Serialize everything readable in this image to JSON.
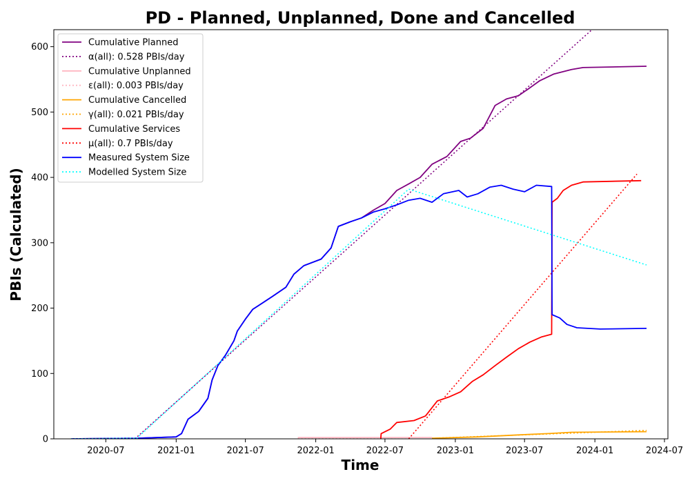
{
  "chart_data": {
    "type": "line",
    "title": "PD - Planned, Unplanned, Done  and Cancelled",
    "xlabel": "Time",
    "ylabel": "PBIs (Calculated)",
    "xlim": [
      "2020-02-16",
      "2024-07-10"
    ],
    "ylim": [
      0,
      626
    ],
    "x_ticks": [
      "2020-07-01",
      "2021-01-01",
      "2021-07-01",
      "2022-01-01",
      "2022-07-01",
      "2023-01-01",
      "2023-07-01",
      "2024-01-01",
      "2024-07-01"
    ],
    "x_tick_labels": [
      "2020-07",
      "2021-01",
      "2021-07",
      "2022-01",
      "2022-07",
      "2023-01",
      "2023-07",
      "2024-01",
      "2024-07"
    ],
    "y_ticks": [
      0,
      100,
      200,
      300,
      400,
      500,
      600
    ],
    "y_tick_labels": [
      "0",
      "100",
      "200",
      "300",
      "400",
      "500",
      "600"
    ],
    "grid": false,
    "legend_position": "top-left",
    "series": [
      {
        "name": "Cumulative Planned",
        "color": "#800080",
        "style": "solid",
        "points": [
          [
            "2020-04-01",
            0
          ],
          [
            "2020-09-20",
            1
          ],
          [
            "2021-01-01",
            3
          ],
          [
            "2021-01-15",
            8
          ],
          [
            "2021-02-01",
            30
          ],
          [
            "2021-03-01",
            42
          ],
          [
            "2021-03-25",
            62
          ],
          [
            "2021-04-05",
            90
          ],
          [
            "2021-04-20",
            112
          ],
          [
            "2021-05-10",
            128
          ],
          [
            "2021-06-01",
            150
          ],
          [
            "2021-06-10",
            165
          ],
          [
            "2021-07-01",
            183
          ],
          [
            "2021-07-20",
            198
          ],
          [
            "2021-08-15",
            208
          ],
          [
            "2021-09-10",
            218
          ],
          [
            "2021-10-15",
            232
          ],
          [
            "2021-11-05",
            252
          ],
          [
            "2021-12-01",
            265
          ],
          [
            "2022-01-15",
            275
          ],
          [
            "2022-02-10",
            292
          ],
          [
            "2022-03-01",
            325
          ],
          [
            "2022-04-01",
            332
          ],
          [
            "2022-05-01",
            338
          ],
          [
            "2022-06-01",
            350
          ],
          [
            "2022-07-01",
            360
          ],
          [
            "2022-08-01",
            380
          ],
          [
            "2022-09-01",
            390
          ],
          [
            "2022-10-01",
            400
          ],
          [
            "2022-11-01",
            420
          ],
          [
            "2022-12-10",
            432
          ],
          [
            "2023-01-15",
            455
          ],
          [
            "2023-02-10",
            460
          ],
          [
            "2023-03-15",
            475
          ],
          [
            "2023-04-15",
            510
          ],
          [
            "2023-05-15",
            520
          ],
          [
            "2023-06-15",
            525
          ],
          [
            "2023-07-10",
            535
          ],
          [
            "2023-08-10",
            548
          ],
          [
            "2023-09-15",
            558
          ],
          [
            "2023-11-01",
            565
          ],
          [
            "2023-12-01",
            568
          ],
          [
            "2024-05-15",
            570
          ]
        ]
      },
      {
        "name": "α(all): 0.528 PBIs/day",
        "color": "#800080",
        "style": "dotted",
        "points": [
          [
            "2020-09-15",
            0
          ],
          [
            "2024-01-01",
            630
          ]
        ]
      },
      {
        "name": "Cumulative Unplanned",
        "color": "#ffb6c1",
        "style": "solid",
        "points": [
          [
            "2021-11-15",
            2
          ],
          [
            "2022-11-01",
            2
          ]
        ]
      },
      {
        "name": "ε(all): 0.003 PBIs/day",
        "color": "#ffb6c1",
        "style": "dotted",
        "points": [
          [
            "2021-11-15",
            1
          ],
          [
            "2022-11-01",
            2
          ]
        ]
      },
      {
        "name": "Cumulative Cancelled",
        "color": "#ffa500",
        "style": "solid",
        "points": [
          [
            "2022-11-01",
            1
          ],
          [
            "2023-03-01",
            3
          ],
          [
            "2023-06-15",
            6
          ],
          [
            "2023-09-01",
            8
          ],
          [
            "2023-11-01",
            10
          ],
          [
            "2024-05-15",
            11
          ]
        ]
      },
      {
        "name": "γ(all): 0.021 PBIs/day",
        "color": "#ffa500",
        "style": "dotted",
        "points": [
          [
            "2022-11-01",
            1
          ],
          [
            "2024-05-15",
            13
          ]
        ]
      },
      {
        "name": "Cumulative Services",
        "color": "#ff0000",
        "style": "solid",
        "points": [
          [
            "2022-06-20",
            0
          ],
          [
            "2022-06-21",
            8
          ],
          [
            "2022-07-15",
            15
          ],
          [
            "2022-08-01",
            25
          ],
          [
            "2022-09-15",
            28
          ],
          [
            "2022-10-15",
            35
          ],
          [
            "2022-11-15",
            58
          ],
          [
            "2022-12-15",
            64
          ],
          [
            "2023-01-15",
            72
          ],
          [
            "2023-02-15",
            88
          ],
          [
            "2023-03-15",
            98
          ],
          [
            "2023-04-15",
            112
          ],
          [
            "2023-05-15",
            125
          ],
          [
            "2023-06-15",
            138
          ],
          [
            "2023-07-15",
            148
          ],
          [
            "2023-08-15",
            156
          ],
          [
            "2023-09-10",
            160
          ],
          [
            "2023-09-11",
            362
          ],
          [
            "2023-09-25",
            368
          ],
          [
            "2023-10-10",
            380
          ],
          [
            "2023-11-01",
            388
          ],
          [
            "2023-12-01",
            393
          ],
          [
            "2024-05-01",
            395
          ]
        ]
      },
      {
        "name": "μ(all): 0.7 PBIs/day",
        "color": "#ff0000",
        "style": "dotted",
        "points": [
          [
            "2022-09-01",
            0
          ],
          [
            "2024-04-20",
            405
          ]
        ]
      },
      {
        "name": "Measured System Size",
        "color": "#0000ff",
        "style": "solid",
        "points": [
          [
            "2020-04-01",
            0
          ],
          [
            "2020-09-20",
            1
          ],
          [
            "2021-01-01",
            3
          ],
          [
            "2021-01-15",
            8
          ],
          [
            "2021-02-01",
            30
          ],
          [
            "2021-03-01",
            42
          ],
          [
            "2021-03-25",
            62
          ],
          [
            "2021-04-05",
            90
          ],
          [
            "2021-04-20",
            112
          ],
          [
            "2021-05-10",
            128
          ],
          [
            "2021-06-01",
            150
          ],
          [
            "2021-06-10",
            165
          ],
          [
            "2021-07-01",
            183
          ],
          [
            "2021-07-20",
            198
          ],
          [
            "2021-08-15",
            208
          ],
          [
            "2021-09-10",
            218
          ],
          [
            "2021-10-15",
            232
          ],
          [
            "2021-11-05",
            252
          ],
          [
            "2021-12-01",
            265
          ],
          [
            "2022-01-15",
            275
          ],
          [
            "2022-02-10",
            292
          ],
          [
            "2022-03-01",
            325
          ],
          [
            "2022-04-01",
            332
          ],
          [
            "2022-05-01",
            338
          ],
          [
            "2022-06-01",
            347
          ],
          [
            "2022-07-01",
            352
          ],
          [
            "2022-08-01",
            358
          ],
          [
            "2022-09-01",
            365
          ],
          [
            "2022-10-01",
            368
          ],
          [
            "2022-11-01",
            362
          ],
          [
            "2022-12-01",
            375
          ],
          [
            "2023-01-10",
            380
          ],
          [
            "2023-02-01",
            370
          ],
          [
            "2023-03-01",
            375
          ],
          [
            "2023-04-01",
            385
          ],
          [
            "2023-05-01",
            388
          ],
          [
            "2023-06-01",
            382
          ],
          [
            "2023-07-01",
            378
          ],
          [
            "2023-08-01",
            388
          ],
          [
            "2023-09-10",
            386
          ],
          [
            "2023-09-11",
            190
          ],
          [
            "2023-10-01",
            185
          ],
          [
            "2023-10-20",
            175
          ],
          [
            "2023-11-15",
            170
          ],
          [
            "2024-01-15",
            168
          ],
          [
            "2024-05-15",
            169
          ]
        ]
      },
      {
        "name": "Modelled System Size",
        "color": "#00ffff",
        "style": "dotted",
        "points": [
          [
            "2020-04-01",
            0
          ],
          [
            "2020-09-20",
            1
          ],
          [
            "2022-09-01",
            382
          ],
          [
            "2024-05-15",
            266
          ]
        ]
      }
    ]
  }
}
